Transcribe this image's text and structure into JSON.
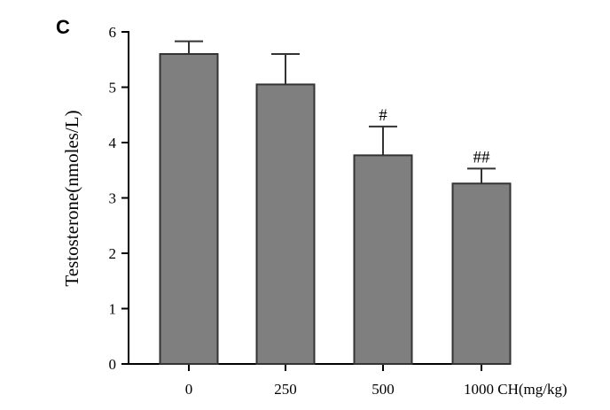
{
  "panel_label": "C",
  "chart_data": {
    "type": "bar",
    "categories": [
      "0",
      "250",
      "500",
      "1000"
    ],
    "x_unit_label": "CH(mg/kg)",
    "values": [
      5.6,
      5.05,
      3.77,
      3.26
    ],
    "errors": [
      0.23,
      0.55,
      0.52,
      0.27
    ],
    "annotations": [
      "",
      "",
      "#",
      "##"
    ],
    "ylabel": "Testosterone(nmoles/L)",
    "xlabel": "",
    "ylim": [
      0,
      6
    ],
    "yticks": [
      0,
      1,
      2,
      3,
      4,
      5,
      6
    ],
    "grid": false,
    "legend": "none",
    "colors": {
      "bar_fill": "#7f7f7f",
      "bar_stroke": "#333333",
      "axis": "#000000"
    }
  }
}
